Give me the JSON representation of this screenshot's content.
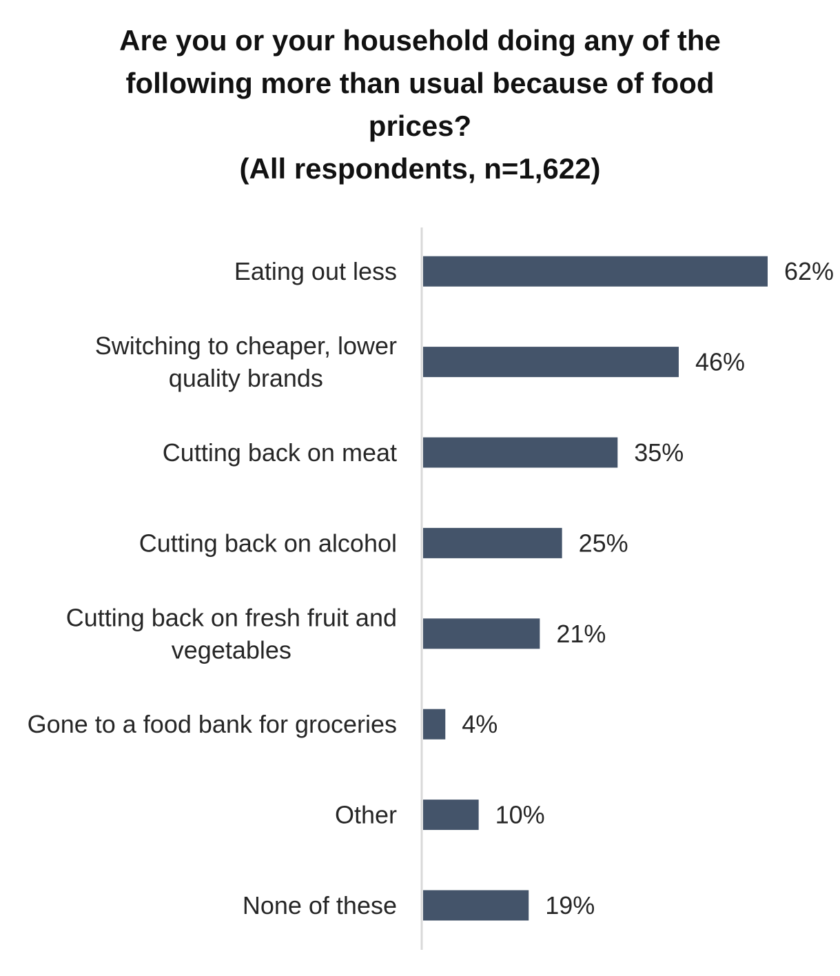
{
  "chart_data": {
    "type": "bar",
    "orientation": "horizontal",
    "title_lines": [
      "Are you or your household doing any of the",
      "following more than usual because of food",
      "prices?",
      "(All respondents, n=1,622)"
    ],
    "categories": [
      [
        "Eating out less"
      ],
      [
        "Switching to cheaper, lower",
        "quality brands"
      ],
      [
        "Cutting back on meat"
      ],
      [
        "Cutting back on alcohol"
      ],
      [
        "Cutting back on fresh fruit and",
        "vegetables"
      ],
      [
        "Gone to a food bank for groceries"
      ],
      [
        "Other"
      ],
      [
        "None of these"
      ]
    ],
    "values": [
      62,
      46,
      35,
      25,
      21,
      4,
      10,
      19
    ],
    "value_labels": [
      "62%",
      "46%",
      "35%",
      "25%",
      "21%",
      "4%",
      "10%",
      "19%"
    ],
    "unit": "%",
    "xlim": [
      0,
      62
    ],
    "grid": false,
    "legend": "none",
    "bar_color": "#44546a",
    "axis_color": "#d9d9d9"
  }
}
